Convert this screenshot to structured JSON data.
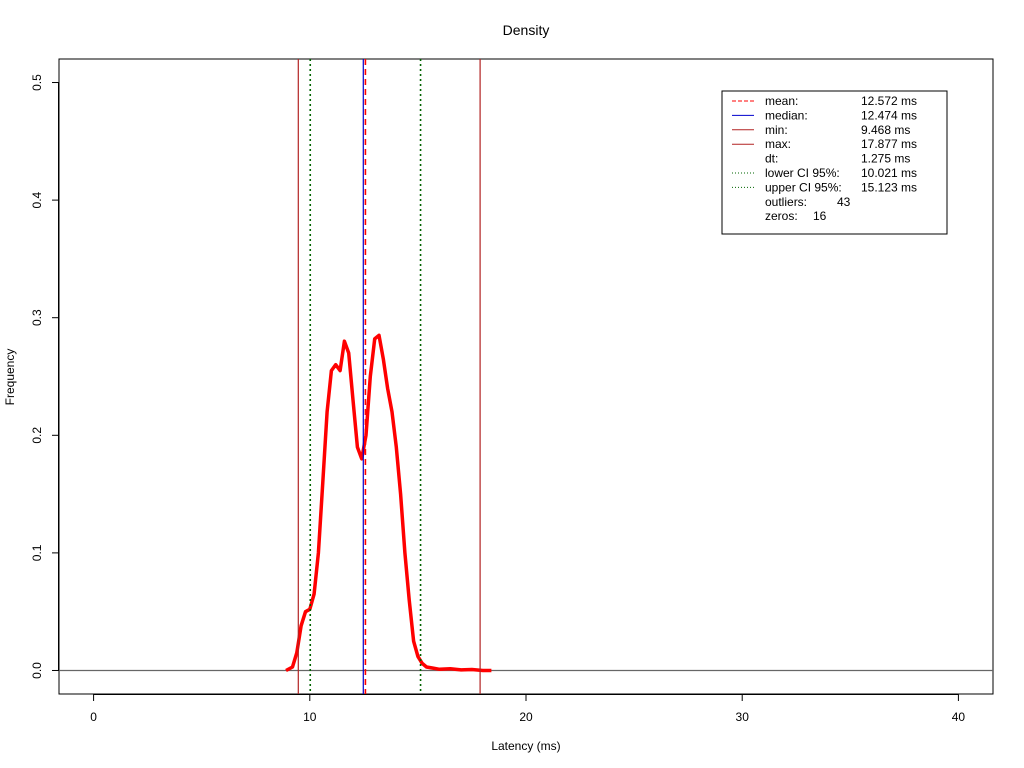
{
  "chart_data": {
    "type": "line",
    "title": "Density",
    "xlabel": "Latency (ms)",
    "ylabel": "Frequency",
    "xlim": [
      -1.6,
      41.6
    ],
    "ylim": [
      -0.02,
      0.52
    ],
    "x_ticks": [
      0,
      10,
      20,
      30,
      40
    ],
    "y_ticks": [
      0.0,
      0.1,
      0.2,
      0.3,
      0.4,
      0.5
    ],
    "x_tick_labels": [
      "0",
      "10",
      "20",
      "30",
      "40"
    ],
    "y_tick_labels": [
      "0.0",
      "0.1",
      "0.2",
      "0.3",
      "0.4",
      "0.5"
    ],
    "grid": false,
    "baseline_y": 0,
    "series": [
      {
        "color": "#ff0000",
        "x": [
          8.9,
          9.2,
          9.4,
          9.6,
          9.8,
          10.0,
          10.2,
          10.4,
          10.6,
          10.8,
          11.0,
          11.2,
          11.4,
          11.6,
          11.8,
          12.0,
          12.2,
          12.4,
          12.6,
          12.8,
          13.0,
          13.2,
          13.4,
          13.6,
          13.8,
          14.0,
          14.2,
          14.4,
          14.6,
          14.8,
          15.0,
          15.2,
          15.4,
          15.7,
          16.0,
          16.5,
          17.0,
          17.5,
          18.0,
          18.4
        ],
        "y": [
          0.0,
          0.003,
          0.015,
          0.038,
          0.05,
          0.052,
          0.065,
          0.1,
          0.16,
          0.22,
          0.255,
          0.26,
          0.255,
          0.28,
          0.27,
          0.23,
          0.19,
          0.18,
          0.2,
          0.25,
          0.282,
          0.285,
          0.265,
          0.24,
          0.22,
          0.19,
          0.15,
          0.1,
          0.06,
          0.025,
          0.012,
          0.006,
          0.003,
          0.002,
          0.001,
          0.0015,
          0.0005,
          0.0008,
          0.0,
          0.0
        ]
      }
    ],
    "vlines": [
      {
        "name": "mean",
        "x": 12.572,
        "color": "#ff0000",
        "style": "dashed"
      },
      {
        "name": "median",
        "x": 12.474,
        "color": "#0000cd",
        "style": "solid"
      },
      {
        "name": "min",
        "x": 9.468,
        "color": "#b22222",
        "style": "solid"
      },
      {
        "name": "max",
        "x": 17.877,
        "color": "#b22222",
        "style": "solid"
      },
      {
        "name": "lower CI 95%",
        "x": 10.021,
        "color": "#006400",
        "style": "dotted"
      },
      {
        "name": "upper CI 95%",
        "x": 15.123,
        "color": "#006400",
        "style": "dotted"
      }
    ],
    "legend": {
      "position": "top-right",
      "entries": [
        {
          "label": "mean:",
          "value": "12.572 ms",
          "color": "#ff0000",
          "style": "dashed"
        },
        {
          "label": "median:",
          "value": "12.474 ms",
          "color": "#0000cd",
          "style": "solid"
        },
        {
          "label": "min:",
          "value": "9.468 ms",
          "color": "#b22222",
          "style": "solid"
        },
        {
          "label": "max:",
          "value": "17.877 ms",
          "color": "#b22222",
          "style": "solid"
        },
        {
          "label": "dt:",
          "value": "1.275 ms",
          "color": "",
          "style": "none"
        },
        {
          "label": "lower CI 95%:",
          "value": "10.021 ms",
          "color": "#006400",
          "style": "dotted"
        },
        {
          "label": "upper CI 95%:",
          "value": "15.123 ms",
          "color": "#006400",
          "style": "dotted"
        },
        {
          "label": "outliers:",
          "value": "43",
          "color": "",
          "style": "none"
        },
        {
          "label": "zeros:",
          "value": "16",
          "color": "",
          "style": "none"
        }
      ]
    }
  }
}
